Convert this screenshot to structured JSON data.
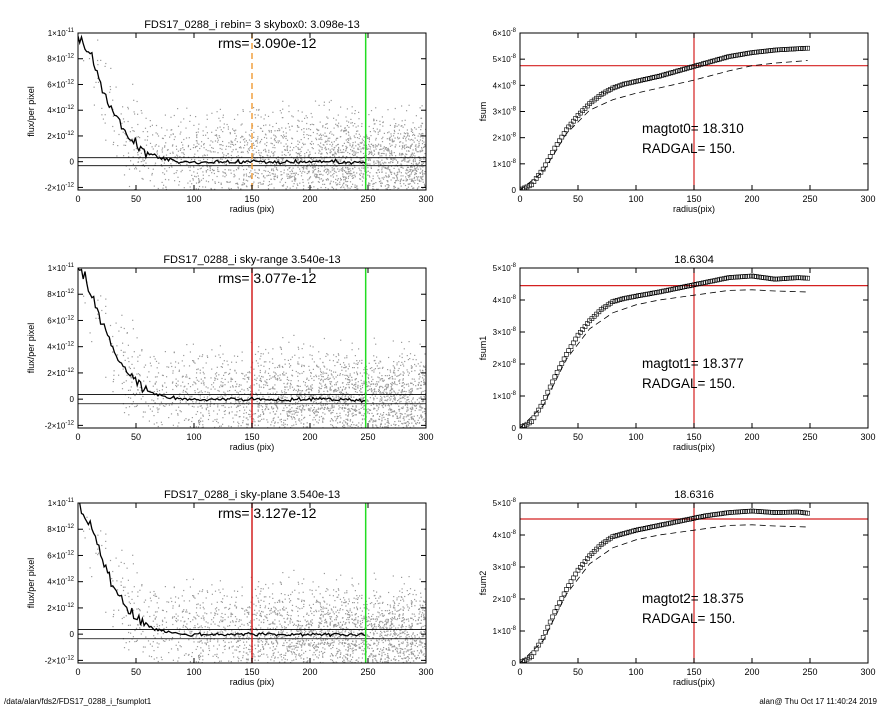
{
  "footer": {
    "path": "/data/alan/fds2/FDS17_0288_i_fsumplot1",
    "stamp": "alan@  Thu Oct 17 11:40:24 2019"
  },
  "colors": {
    "ref_red": "#d42020",
    "ref_green": "#22dd22",
    "ref_orange": "#f0a040",
    "scatter": "#9a9a9a",
    "profile": "#000000"
  },
  "chart_data": [
    {
      "type": "scatter",
      "title": "FDS17_0288_i rebin= 3    skybox0:  3.098e-13",
      "annotation": "rms= 3.090e-12",
      "xlabel": "radius (pix)",
      "ylabel": "flux/per pixel",
      "xlim": [
        0,
        300
      ],
      "ylim": [
        -2.2e-12,
        1e-11
      ],
      "xticks": [
        "0",
        "50",
        "100",
        "150",
        "200",
        "250",
        "300"
      ],
      "yticks": [
        {
          "v": 1e-11,
          "m": "1×10",
          "e": "-11"
        },
        {
          "v": 8e-12,
          "m": "8×10",
          "e": "-12"
        },
        {
          "v": 6e-12,
          "m": "6×10",
          "e": "-12"
        },
        {
          "v": 4e-12,
          "m": "4×10",
          "e": "-12"
        },
        {
          "v": 2e-12,
          "m": "2×10",
          "e": "-12"
        },
        {
          "v": 0,
          "m": "0",
          "e": ""
        },
        {
          "v": -2e-12,
          "m": "-2×10",
          "e": "-12"
        }
      ],
      "hlines": [
        3.1e-13,
        -3.1e-13
      ],
      "vlines": [
        {
          "x": 150,
          "color": "#f0a040",
          "style": "dashed"
        },
        {
          "x": 248,
          "color": "#22dd22",
          "style": "solid"
        }
      ],
      "profile_x": [
        0,
        10,
        20,
        30,
        40,
        50,
        60,
        70,
        80,
        90,
        100,
        120,
        150,
        180,
        200,
        220,
        248
      ],
      "profile_y": [
        1e-11,
        8.5e-12,
        6e-12,
        3.8e-12,
        2.3e-12,
        1.3e-12,
        6.5e-13,
        3e-13,
        1e-13,
        0,
        -5e-14,
        0,
        0,
        -5e-14,
        0,
        0,
        -1e-13
      ]
    },
    {
      "type": "line",
      "title": "",
      "annotation_lines": [
        "magtot0=  18.310",
        "RADGAL=    150."
      ],
      "xlabel": "radius(pix)",
      "ylabel": "fsum",
      "xlim": [
        0,
        300
      ],
      "ylim": [
        0,
        6e-08
      ],
      "xticks": [
        "0",
        "50",
        "100",
        "150",
        "200",
        "250",
        "300"
      ],
      "yticks": [
        {
          "v": 6e-08,
          "m": "6×10",
          "e": "-8"
        },
        {
          "v": 5e-08,
          "m": "5×10",
          "e": "-8"
        },
        {
          "v": 4e-08,
          "m": "4×10",
          "e": "-8"
        },
        {
          "v": 3e-08,
          "m": "3×10",
          "e": "-8"
        },
        {
          "v": 2e-08,
          "m": "2×10",
          "e": "-8"
        },
        {
          "v": 1e-08,
          "m": "1×10",
          "e": "-8"
        },
        {
          "v": 0,
          "m": "0",
          "e": ""
        }
      ],
      "ref_x": 150,
      "ref_y": 4.75e-08,
      "series": [
        {
          "style": "markers",
          "x": [
            0,
            10,
            20,
            30,
            40,
            50,
            60,
            70,
            80,
            90,
            100,
            120,
            140,
            160,
            180,
            200,
            220,
            240,
            248
          ],
          "y": [
            0,
            2e-09,
            8e-09,
            1.6e-08,
            2.3e-08,
            2.85e-08,
            3.3e-08,
            3.65e-08,
            3.9e-08,
            4.05e-08,
            4.15e-08,
            4.35e-08,
            4.6e-08,
            4.85e-08,
            5.1e-08,
            5.25e-08,
            5.35e-08,
            5.4e-08,
            5.42e-08
          ]
        },
        {
          "style": "dashed",
          "x": [
            0,
            20,
            40,
            60,
            80,
            100,
            120,
            150,
            180,
            200,
            220,
            248
          ],
          "y": [
            0,
            7e-09,
            2.15e-08,
            3.05e-08,
            3.45e-08,
            3.7e-08,
            3.9e-08,
            4.2e-08,
            4.55e-08,
            4.75e-08,
            4.85e-08,
            4.95e-08
          ]
        }
      ]
    },
    {
      "type": "scatter",
      "title": "FDS17_0288_i sky-range  3.540e-13",
      "annotation": "rms= 3.077e-12",
      "xlabel": "radius (pix)",
      "ylabel": "flux/per pixel",
      "xlim": [
        0,
        300
      ],
      "ylim": [
        -2.2e-12,
        1e-11
      ],
      "xticks": [
        "0",
        "50",
        "100",
        "150",
        "200",
        "250",
        "300"
      ],
      "yticks": [
        {
          "v": 1e-11,
          "m": "1×10",
          "e": "-11"
        },
        {
          "v": 8e-12,
          "m": "8×10",
          "e": "-12"
        },
        {
          "v": 6e-12,
          "m": "6×10",
          "e": "-12"
        },
        {
          "v": 4e-12,
          "m": "4×10",
          "e": "-12"
        },
        {
          "v": 2e-12,
          "m": "2×10",
          "e": "-12"
        },
        {
          "v": 0,
          "m": "0",
          "e": ""
        },
        {
          "v": -2e-12,
          "m": "-2×10",
          "e": "-12"
        }
      ],
      "hlines": [
        3.5e-13,
        -3.5e-13
      ],
      "vlines": [
        {
          "x": 150,
          "color": "#d42020",
          "style": "solid"
        },
        {
          "x": 248,
          "color": "#22dd22",
          "style": "solid"
        }
      ],
      "profile_x": [
        0,
        10,
        20,
        30,
        40,
        50,
        60,
        70,
        80,
        90,
        100,
        120,
        150,
        180,
        200,
        220,
        248
      ],
      "profile_y": [
        1e-11,
        8.5e-12,
        6e-12,
        3.8e-12,
        2.3e-12,
        1.3e-12,
        6.5e-13,
        3e-13,
        1e-13,
        0,
        -5e-14,
        0,
        0,
        -5e-14,
        0,
        0,
        -1e-13
      ]
    },
    {
      "type": "line",
      "title": "18.6304",
      "annotation_lines": [
        "magtot1=  18.377",
        "RADGAL=    150."
      ],
      "xlabel": "radius(pix)",
      "ylabel": "fsum1",
      "xlim": [
        0,
        300
      ],
      "ylim": [
        0,
        5e-08
      ],
      "xticks": [
        "0",
        "50",
        "100",
        "150",
        "200",
        "250",
        "300"
      ],
      "yticks": [
        {
          "v": 5e-08,
          "m": "5×10",
          "e": "-8"
        },
        {
          "v": 4e-08,
          "m": "4×10",
          "e": "-8"
        },
        {
          "v": 3e-08,
          "m": "3×10",
          "e": "-8"
        },
        {
          "v": 2e-08,
          "m": "2×10",
          "e": "-8"
        },
        {
          "v": 1e-08,
          "m": "1×10",
          "e": "-8"
        },
        {
          "v": 0,
          "m": "0",
          "e": ""
        }
      ],
      "ref_x": 150,
      "ref_y": 4.45e-08,
      "series": [
        {
          "style": "markers",
          "x": [
            0,
            10,
            20,
            30,
            40,
            50,
            60,
            70,
            80,
            90,
            100,
            120,
            140,
            160,
            180,
            200,
            220,
            240,
            248
          ],
          "y": [
            0,
            2e-09,
            8e-09,
            1.6e-08,
            2.3e-08,
            2.9e-08,
            3.35e-08,
            3.7e-08,
            3.95e-08,
            4.05e-08,
            4.12e-08,
            4.25e-08,
            4.4e-08,
            4.55e-08,
            4.7e-08,
            4.75e-08,
            4.65e-08,
            4.7e-08,
            4.68e-08
          ]
        },
        {
          "style": "dashed",
          "x": [
            0,
            20,
            40,
            60,
            80,
            100,
            120,
            150,
            180,
            200,
            220,
            248
          ],
          "y": [
            0,
            7e-09,
            2.15e-08,
            3.1e-08,
            3.6e-08,
            3.85e-08,
            4e-08,
            4.15e-08,
            4.3e-08,
            4.32e-08,
            4.28e-08,
            4.25e-08
          ]
        }
      ]
    },
    {
      "type": "scatter",
      "title": "FDS17_0288_i sky-plane  3.540e-13",
      "annotation": "rms= 3.127e-12",
      "xlabel": "radius (pix)",
      "ylabel": "flux/per pixel",
      "xlim": [
        0,
        300
      ],
      "ylim": [
        -2.2e-12,
        1e-11
      ],
      "xticks": [
        "0",
        "50",
        "100",
        "150",
        "200",
        "250",
        "300"
      ],
      "yticks": [
        {
          "v": 1e-11,
          "m": "1×10",
          "e": "-11"
        },
        {
          "v": 8e-12,
          "m": "8×10",
          "e": "-12"
        },
        {
          "v": 6e-12,
          "m": "6×10",
          "e": "-12"
        },
        {
          "v": 4e-12,
          "m": "4×10",
          "e": "-12"
        },
        {
          "v": 2e-12,
          "m": "2×10",
          "e": "-12"
        },
        {
          "v": 0,
          "m": "0",
          "e": ""
        },
        {
          "v": -2e-12,
          "m": "-2×10",
          "e": "-12"
        }
      ],
      "hlines": [
        3.5e-13,
        -3.5e-13
      ],
      "vlines": [
        {
          "x": 150,
          "color": "#d42020",
          "style": "solid"
        },
        {
          "x": 248,
          "color": "#22dd22",
          "style": "solid"
        }
      ],
      "profile_x": [
        0,
        10,
        20,
        30,
        40,
        50,
        60,
        70,
        80,
        90,
        100,
        120,
        150,
        180,
        200,
        220,
        248
      ],
      "profile_y": [
        1e-11,
        8.5e-12,
        6e-12,
        3.8e-12,
        2.3e-12,
        1.3e-12,
        6.5e-13,
        3e-13,
        1e-13,
        0,
        -5e-14,
        0,
        0,
        -5e-14,
        0,
        0,
        -1e-13
      ]
    },
    {
      "type": "line",
      "title": "18.6316",
      "annotation_lines": [
        "magtot2=  18.375",
        "RADGAL=    150."
      ],
      "xlabel": "radius(pix)",
      "ylabel": "fsum2",
      "xlim": [
        0,
        300
      ],
      "ylim": [
        0,
        5e-08
      ],
      "xticks": [
        "0",
        "50",
        "100",
        "150",
        "200",
        "250",
        "300"
      ],
      "yticks": [
        {
          "v": 5e-08,
          "m": "5×10",
          "e": "-8"
        },
        {
          "v": 4e-08,
          "m": "4×10",
          "e": "-8"
        },
        {
          "v": 3e-08,
          "m": "3×10",
          "e": "-8"
        },
        {
          "v": 2e-08,
          "m": "2×10",
          "e": "-8"
        },
        {
          "v": 1e-08,
          "m": "1×10",
          "e": "-8"
        },
        {
          "v": 0,
          "m": "0",
          "e": ""
        }
      ],
      "ref_x": 150,
      "ref_y": 4.5e-08,
      "series": [
        {
          "style": "markers",
          "x": [
            0,
            10,
            20,
            30,
            40,
            50,
            60,
            70,
            80,
            90,
            100,
            120,
            140,
            160,
            180,
            200,
            220,
            240,
            248
          ],
          "y": [
            0,
            2e-09,
            8e-09,
            1.6e-08,
            2.3e-08,
            2.9e-08,
            3.35e-08,
            3.7e-08,
            3.95e-08,
            4.05e-08,
            4.15e-08,
            4.3e-08,
            4.45e-08,
            4.6e-08,
            4.7e-08,
            4.75e-08,
            4.7e-08,
            4.72e-08,
            4.68e-08
          ]
        },
        {
          "style": "dashed",
          "x": [
            0,
            20,
            40,
            60,
            80,
            100,
            120,
            150,
            180,
            200,
            220,
            248
          ],
          "y": [
            0,
            7e-09,
            2.15e-08,
            3.1e-08,
            3.6e-08,
            3.85e-08,
            4e-08,
            4.15e-08,
            4.3e-08,
            4.32e-08,
            4.28e-08,
            4.25e-08
          ]
        }
      ]
    }
  ]
}
